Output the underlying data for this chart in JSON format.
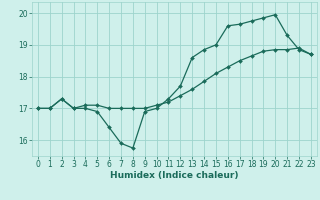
{
  "xlabel": "Humidex (Indice chaleur)",
  "background_color": "#cff0eb",
  "grid_color": "#9dd4cc",
  "line_color": "#1a6b5a",
  "xlim": [
    -0.5,
    23.5
  ],
  "ylim": [
    15.5,
    20.35
  ],
  "yticks": [
    16,
    17,
    18,
    19,
    20
  ],
  "xticks": [
    0,
    1,
    2,
    3,
    4,
    5,
    6,
    7,
    8,
    9,
    10,
    11,
    12,
    13,
    14,
    15,
    16,
    17,
    18,
    19,
    20,
    21,
    22,
    23
  ],
  "line1_x": [
    0,
    1,
    2,
    3,
    4,
    5,
    6,
    7,
    8,
    9,
    10,
    11,
    12,
    13,
    14,
    15,
    16,
    17,
    18,
    19,
    20,
    21,
    22,
    23
  ],
  "line1_y": [
    17.0,
    17.0,
    17.3,
    17.0,
    17.0,
    16.9,
    16.4,
    15.9,
    15.75,
    16.9,
    17.0,
    17.3,
    17.7,
    18.6,
    18.85,
    19.0,
    19.6,
    19.65,
    19.75,
    19.85,
    19.95,
    19.3,
    18.85,
    18.7
  ],
  "line2_x": [
    0,
    1,
    2,
    3,
    4,
    5,
    6,
    7,
    8,
    9,
    10,
    11,
    12,
    13,
    14,
    15,
    16,
    17,
    18,
    19,
    20,
    21,
    22,
    23
  ],
  "line2_y": [
    17.0,
    17.0,
    17.3,
    17.0,
    17.1,
    17.1,
    17.0,
    17.0,
    17.0,
    17.0,
    17.1,
    17.2,
    17.4,
    17.6,
    17.85,
    18.1,
    18.3,
    18.5,
    18.65,
    18.8,
    18.85,
    18.85,
    18.9,
    18.7
  ]
}
